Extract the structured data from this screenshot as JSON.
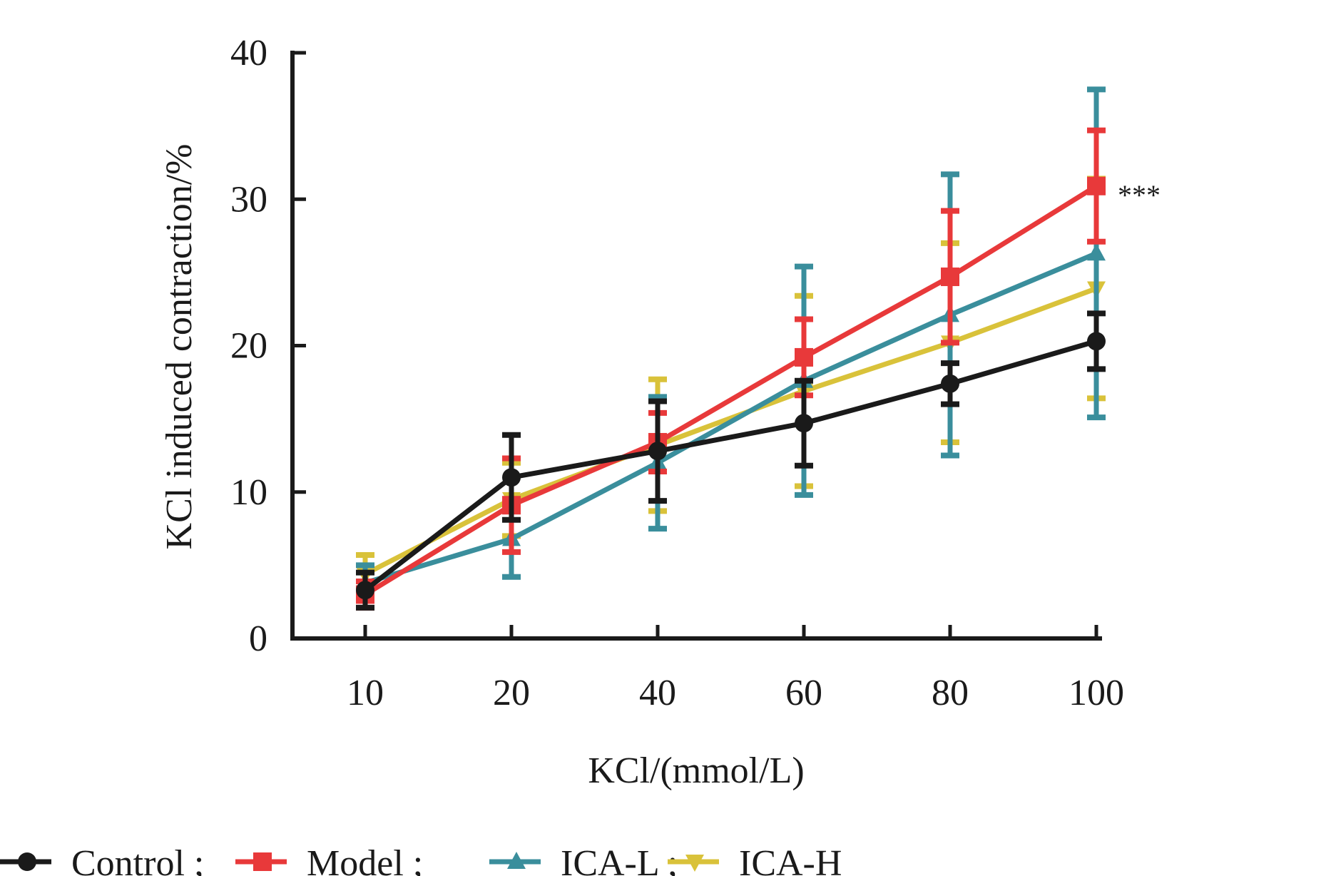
{
  "chart_data": {
    "type": "line",
    "title": "",
    "xlabel": "KCl/(mmol/L)",
    "ylabel": "KCl induced contraction/%",
    "categories": [
      "10",
      "20",
      "40",
      "60",
      "80",
      "100"
    ],
    "ylim": [
      0,
      40
    ],
    "yticks": [
      0,
      10,
      20,
      30,
      40
    ],
    "grid": false,
    "legend_position": "bottom",
    "error_bars": true,
    "series": [
      {
        "name": "Control",
        "legend_label": "Control ;",
        "color": "#1a1a1a",
        "marker": "circle",
        "values": [
          3.3,
          11.0,
          12.8,
          14.7,
          17.4,
          20.3
        ],
        "errors": [
          1.2,
          2.9,
          3.4,
          2.9,
          1.4,
          1.9
        ]
      },
      {
        "name": "Model",
        "legend_label": "Model ;",
        "color": "#e8393a",
        "marker": "square",
        "values": [
          3.0,
          9.1,
          13.4,
          19.2,
          24.7,
          30.9
        ],
        "errors": [
          0.9,
          3.2,
          2.0,
          2.6,
          4.5,
          3.8
        ]
      },
      {
        "name": "ICA-L",
        "legend_label": "ICA-L ;",
        "color": "#3a8e9c",
        "marker": "triangle-up",
        "values": [
          3.8,
          6.8,
          12.0,
          17.6,
          22.1,
          26.3
        ],
        "errors": [
          1.2,
          2.6,
          4.5,
          7.8,
          9.6,
          11.2
        ]
      },
      {
        "name": "ICA-H",
        "legend_label": "ICA-H",
        "color": "#d9c23a",
        "marker": "triangle-down",
        "values": [
          4.4,
          9.5,
          13.2,
          16.9,
          20.2,
          23.9
        ],
        "errors": [
          1.3,
          2.5,
          4.5,
          6.5,
          6.8,
          7.5
        ]
      }
    ],
    "annotations": [
      {
        "text": "***",
        "series": "Model",
        "category": "100"
      }
    ]
  }
}
